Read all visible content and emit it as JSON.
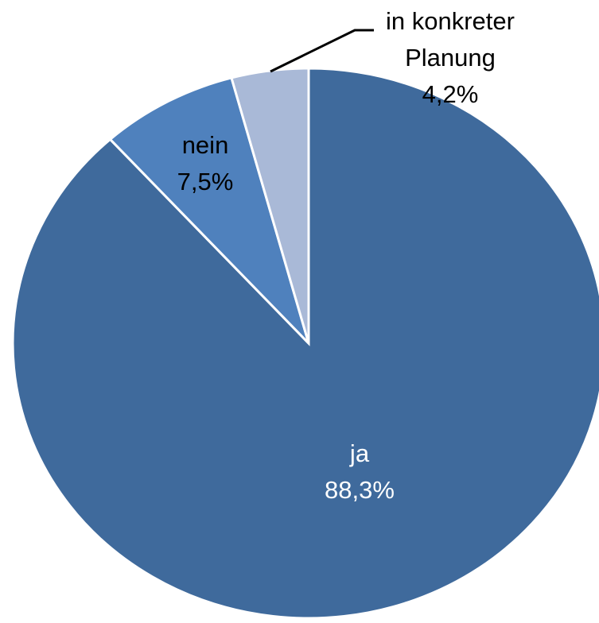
{
  "chart_data": {
    "type": "pie",
    "categories": [
      "ja",
      "nein",
      "in konkreter Planung"
    ],
    "values": [
      88.3,
      7.5,
      4.2
    ],
    "value_labels": [
      "88,3%",
      "7,5%",
      "4,2%"
    ],
    "colors": [
      "#3f6a9c",
      "#4f81bd",
      "#a9b9d7"
    ]
  }
}
